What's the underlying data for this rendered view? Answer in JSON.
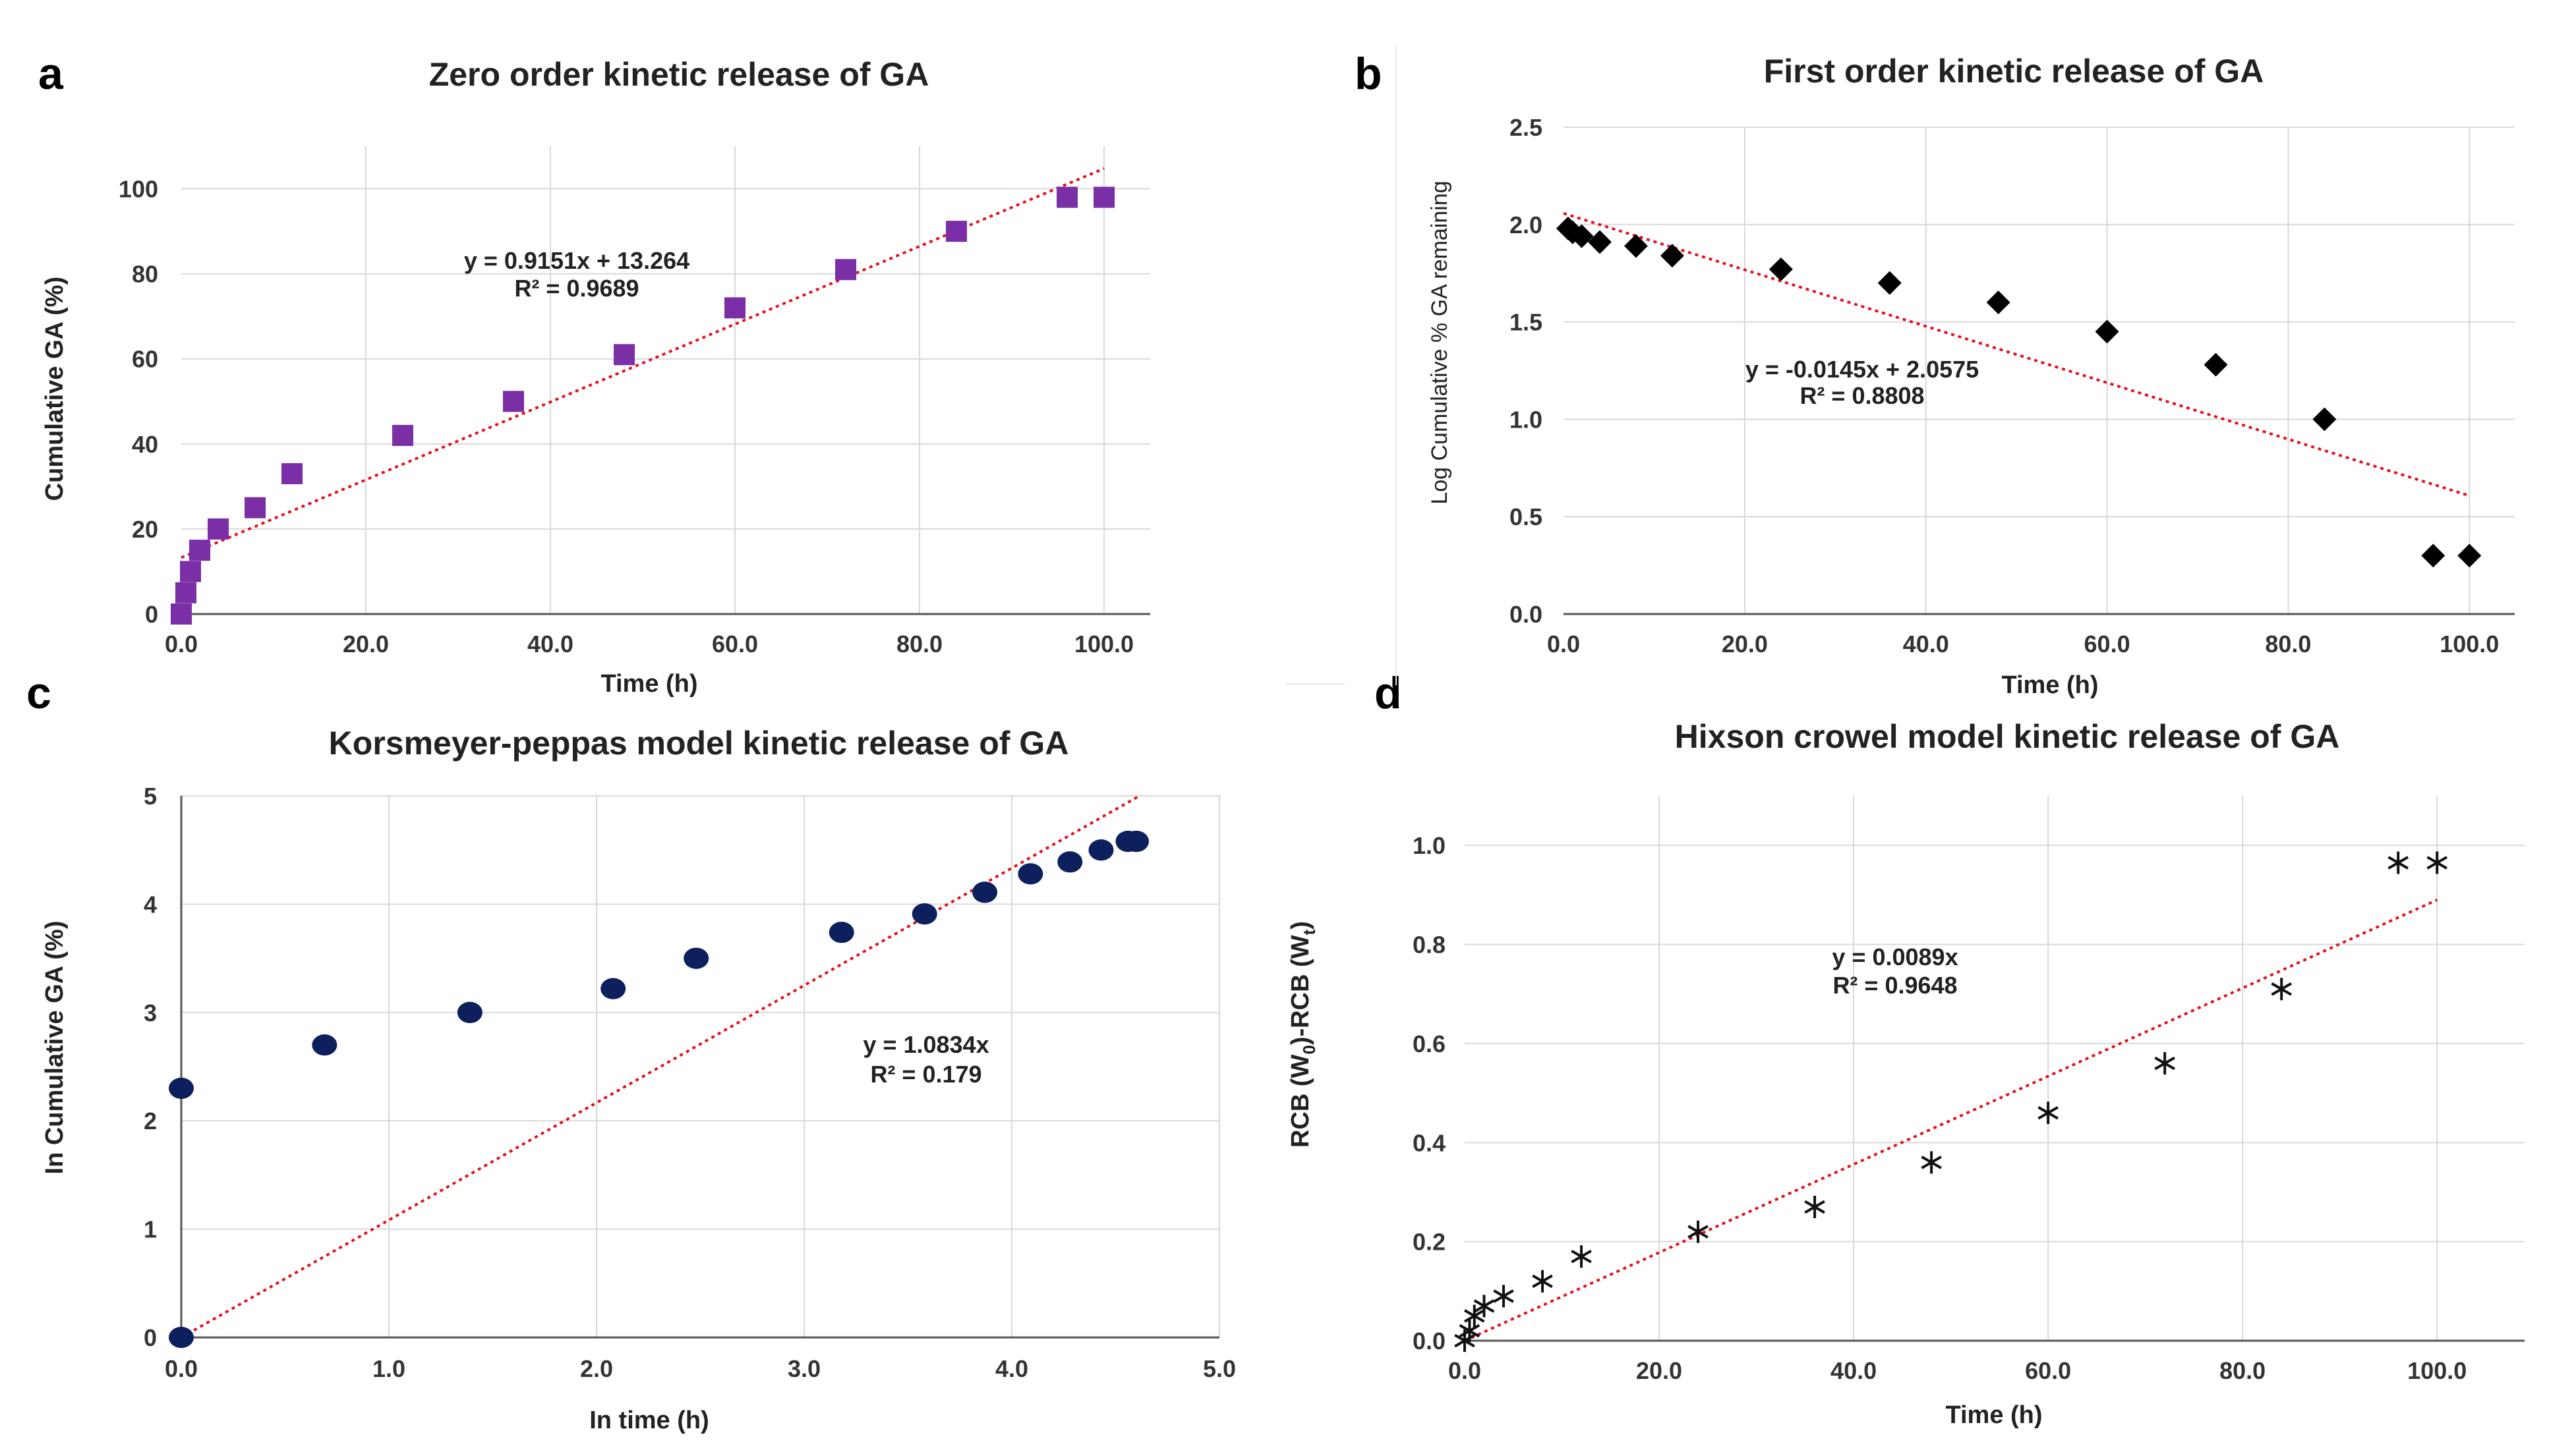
{
  "chart_data": [
    {
      "type": "scatter",
      "panel": "a",
      "title": "Zero order kinetic release of GA",
      "xlabel": "Time (h)",
      "ylabel": "Cumulative GA (%)",
      "xlim": [
        0,
        105
      ],
      "ylim": [
        0,
        110
      ],
      "xticks": [
        0,
        20,
        40,
        60,
        80,
        100
      ],
      "xtick_labels": [
        "0.0",
        "20.0",
        "40.0",
        "60.0",
        "80.0",
        "100.0"
      ],
      "yticks": [
        0,
        20,
        40,
        60,
        80,
        100
      ],
      "ytick_labels": [
        "0",
        "20",
        "40",
        "60",
        "80",
        "100"
      ],
      "grid": true,
      "marker": "square",
      "color": "#7b2fa6",
      "x": [
        0,
        0.5,
        1,
        2,
        4,
        8,
        12,
        24,
        36,
        48,
        60,
        72,
        84,
        96,
        100
      ],
      "y": [
        0,
        5,
        10,
        15,
        20,
        25,
        33,
        42,
        50,
        61,
        72,
        81,
        90,
        98,
        98
      ],
      "trendline": {
        "slope": 0.9151,
        "intercept": 13.264,
        "x_range": [
          0,
          100
        ]
      },
      "equation": "y = 0.9151x + 13.264",
      "r2": "R² = 0.9689"
    },
    {
      "type": "scatter",
      "panel": "b",
      "title": "First order kinetic release of GA",
      "xlabel": "Time (h)",
      "ylabel": "Log Cumulative % GA remaining",
      "xlim": [
        0,
        105
      ],
      "ylim": [
        0,
        2.5
      ],
      "xticks": [
        0,
        20,
        40,
        60,
        80,
        100
      ],
      "xtick_labels": [
        "0.0",
        "20.0",
        "40.0",
        "60.0",
        "80.0",
        "100.0"
      ],
      "yticks": [
        0,
        0.5,
        1,
        1.5,
        2,
        2.5
      ],
      "ytick_labels": [
        "0.0",
        "0.5",
        "1.0",
        "1.5",
        "2.0",
        "2.5"
      ],
      "grid": true,
      "marker": "diamond",
      "color": "#000000",
      "x": [
        0.5,
        1,
        2,
        4,
        8,
        12,
        24,
        36,
        48,
        60,
        72,
        84,
        96,
        100
      ],
      "y": [
        1.98,
        1.96,
        1.94,
        1.91,
        1.89,
        1.84,
        1.77,
        1.7,
        1.6,
        1.45,
        1.28,
        1.0,
        0.3,
        0.3
      ],
      "trendline": {
        "slope": -0.0145,
        "intercept": 2.0575,
        "x_range": [
          0,
          100
        ]
      },
      "equation": "y = -0.0145x + 2.0575",
      "r2": "R² = 0.8808"
    },
    {
      "type": "scatter",
      "panel": "c",
      "title": "Korsmeyer-peppas model kinetic release of GA",
      "xlabel": "In time (h)",
      "ylabel": "In Cumulative GA (%)",
      "xlim": [
        0,
        5
      ],
      "ylim": [
        0,
        5
      ],
      "xticks": [
        0,
        1,
        2,
        3,
        4,
        5
      ],
      "xtick_labels": [
        "0.0",
        "1.0",
        "2.0",
        "3.0",
        "4.0",
        "5.0"
      ],
      "yticks": [
        0,
        1,
        2,
        3,
        4,
        5
      ],
      "ytick_labels": [
        "0",
        "1",
        "2",
        "3",
        "4",
        "5"
      ],
      "grid": true,
      "marker": "circle",
      "color": "#0d1f5c",
      "x": [
        0,
        0,
        0.69,
        1.39,
        2.08,
        2.48,
        3.18,
        3.58,
        3.87,
        4.09,
        4.28,
        4.43,
        4.56,
        4.6
      ],
      "y": [
        0,
        2.3,
        2.7,
        3.0,
        3.22,
        3.5,
        3.74,
        3.91,
        4.11,
        4.28,
        4.39,
        4.5,
        4.58,
        4.58
      ],
      "trendline": {
        "slope": 1.0834,
        "intercept": 0,
        "x_range": [
          0,
          4.615
        ]
      },
      "equation": "y = 1.0834x",
      "r2": "R² = 0.179"
    },
    {
      "type": "scatter",
      "panel": "d",
      "title": "Hixson crowel model kinetic release of GA",
      "xlabel": "Time (h)",
      "ylabel": "RCB (W0)-RCB (Wt)",
      "ylabel_parts": [
        "RCB (W",
        "0",
        ")-RCB (W",
        "t",
        ")"
      ],
      "xlim": [
        0,
        109
      ],
      "ylim": [
        0,
        1.1
      ],
      "xticks": [
        0,
        20,
        40,
        60,
        80,
        100
      ],
      "xtick_labels": [
        "0.0",
        "20.0",
        "40.0",
        "60.0",
        "80.0",
        "100.0"
      ],
      "yticks": [
        0,
        0.2,
        0.4,
        0.6,
        0.8,
        1.0
      ],
      "ytick_labels": [
        "0.0",
        "0.2",
        "0.4",
        "0.6",
        "0.8",
        "1.0"
      ],
      "grid": true,
      "marker": "asterisk",
      "color": "#111111",
      "x": [
        0,
        0.5,
        1,
        2,
        4,
        8,
        12,
        24,
        36,
        48,
        60,
        72,
        84,
        96,
        100
      ],
      "y": [
        0,
        0.02,
        0.05,
        0.07,
        0.09,
        0.12,
        0.17,
        0.22,
        0.27,
        0.36,
        0.46,
        0.56,
        0.71,
        0.965,
        0.965
      ],
      "trendline": {
        "slope": 0.0089,
        "intercept": 0,
        "x_range": [
          0,
          100
        ]
      },
      "equation": "y = 0.0089x",
      "r2": "R² = 0.9648"
    }
  ]
}
